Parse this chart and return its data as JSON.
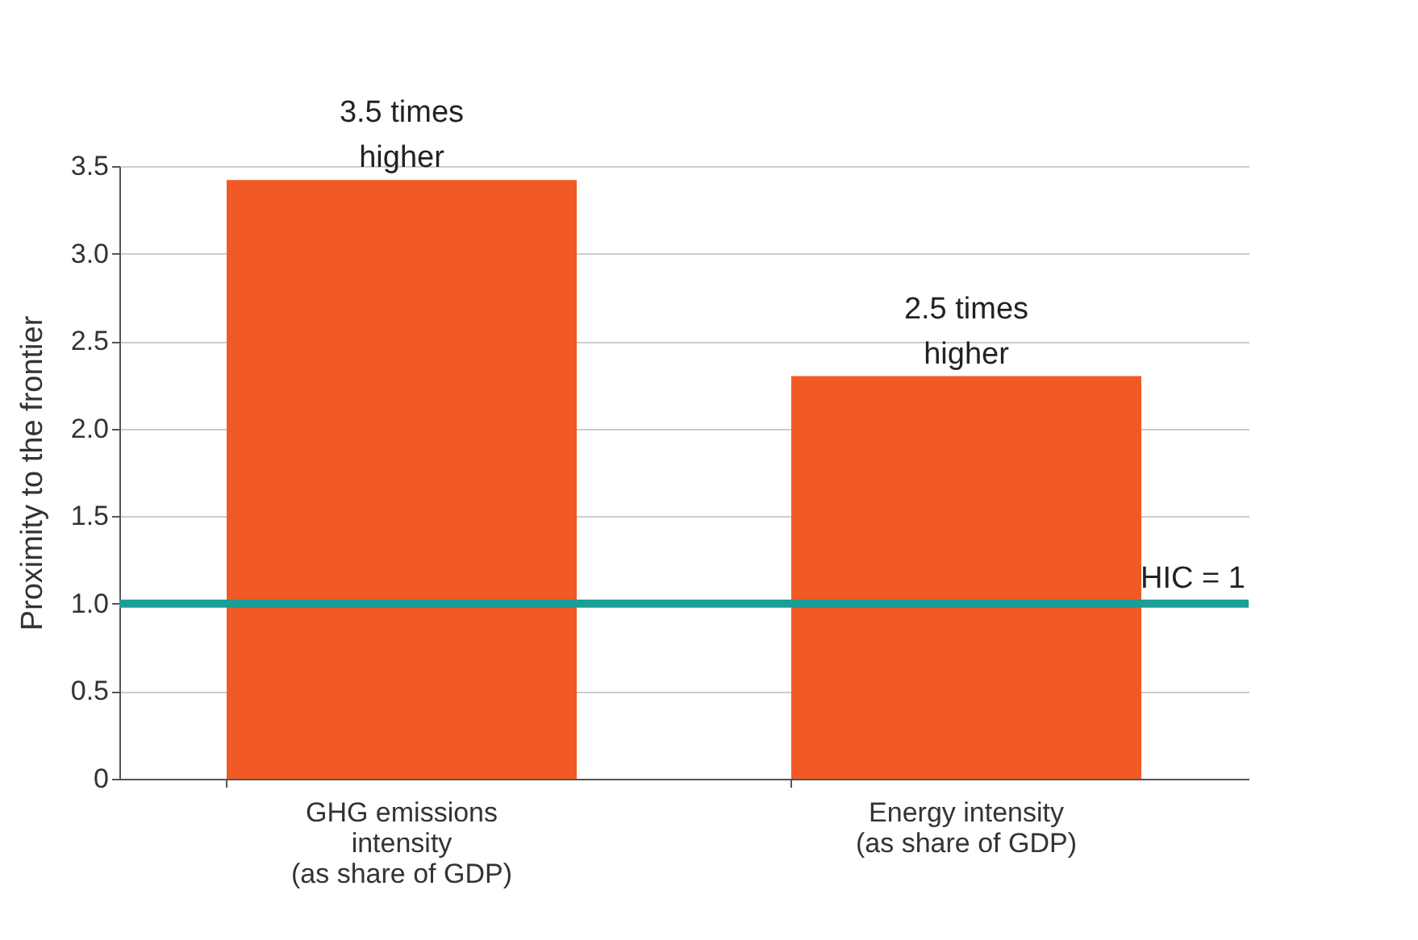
{
  "chart_data": {
    "type": "bar",
    "ylabel": "Proximity to the frontier",
    "categories": [
      "GHG emissions intensity (as share of GDP)",
      "Energy intensity (as share of GDP)"
    ],
    "values": [
      3.42,
      2.3
    ],
    "color": "#f15a24",
    "ylim": [
      0,
      3.5
    ],
    "yticks": [
      0,
      0.5,
      {
        "value": 1,
        "label": "1.0"
      },
      1.5,
      {
        "value": 2,
        "label": "2.0"
      },
      2.5,
      {
        "value": 3,
        "label": "3.0"
      },
      3.5
    ],
    "grid": "y",
    "ref_lines": [
      {
        "axis": "y",
        "value": 1,
        "label": "HIC = 1",
        "color": "#1a9e96"
      }
    ],
    "annotations": [
      {
        "text": "3.5 times higher",
        "x": "GHG emissions intensity (as share of GDP)",
        "y": 3.42
      },
      {
        "text": "2.5 times higher",
        "x": "Energy intensity (as share of GDP)",
        "y": 2.3
      }
    ]
  }
}
